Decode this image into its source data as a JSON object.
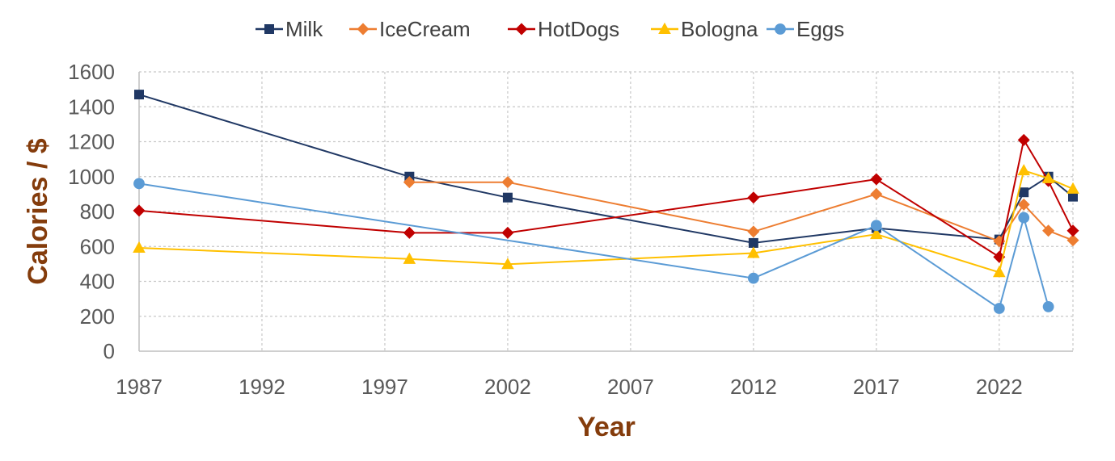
{
  "chart_data": {
    "type": "line",
    "title": "",
    "xlabel": "Year",
    "ylabel": "Calories / $",
    "xlim": [
      1987,
      2025
    ],
    "ylim": [
      0,
      1600
    ],
    "xticks": [
      1987,
      1992,
      1997,
      2002,
      2007,
      2012,
      2017,
      2022
    ],
    "yticks": [
      0,
      200,
      400,
      600,
      800,
      1000,
      1200,
      1400,
      1600
    ],
    "grid": "dashed",
    "legend_position": "top",
    "series": [
      {
        "name": "Milk",
        "color": "#203864",
        "marker": "square",
        "points": [
          [
            1987,
            1470
          ],
          [
            1998,
            1000
          ],
          [
            2002,
            880
          ],
          [
            2012,
            620
          ],
          [
            2017,
            705
          ],
          [
            2022,
            640
          ],
          [
            2023,
            910
          ],
          [
            2024,
            1000
          ],
          [
            2025,
            885
          ]
        ]
      },
      {
        "name": "IceCream",
        "color": "#ED7D31",
        "marker": "diamond",
        "points": [
          [
            1998,
            968
          ],
          [
            2002,
            968
          ],
          [
            2012,
            685
          ],
          [
            2017,
            900
          ],
          [
            2022,
            630
          ],
          [
            2023,
            840
          ],
          [
            2024,
            690
          ],
          [
            2025,
            635
          ]
        ]
      },
      {
        "name": "HotDogs",
        "color": "#C00000",
        "marker": "diamond",
        "points": [
          [
            1987,
            805
          ],
          [
            1998,
            678
          ],
          [
            2002,
            678
          ],
          [
            2012,
            880
          ],
          [
            2017,
            985
          ],
          [
            2022,
            540
          ],
          [
            2023,
            1210
          ],
          [
            2024,
            975
          ],
          [
            2025,
            690
          ]
        ]
      },
      {
        "name": "Bologna",
        "color": "#FFC000",
        "marker": "triangle",
        "points": [
          [
            1987,
            592
          ],
          [
            1998,
            528
          ],
          [
            2002,
            498
          ],
          [
            2012,
            562
          ],
          [
            2017,
            670
          ],
          [
            2022,
            452
          ],
          [
            2023,
            1035
          ],
          [
            2024,
            990
          ],
          [
            2025,
            930
          ]
        ]
      },
      {
        "name": "Eggs",
        "color": "#5B9BD5",
        "marker": "circle",
        "points": [
          [
            1987,
            960
          ],
          [
            2012,
            418
          ],
          [
            2017,
            720
          ],
          [
            2022,
            245
          ],
          [
            2023,
            765
          ],
          [
            2024,
            255
          ]
        ]
      }
    ]
  }
}
